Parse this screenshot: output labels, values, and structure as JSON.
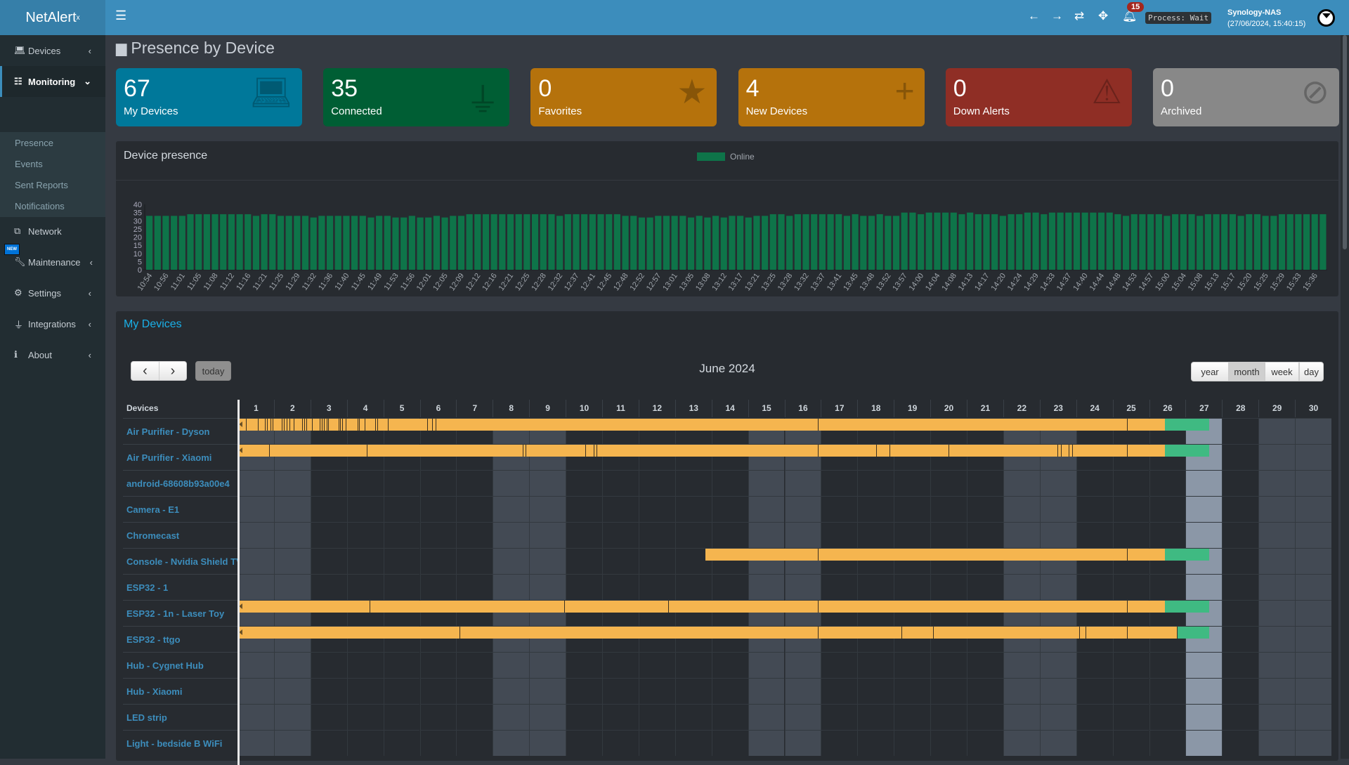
{
  "app": {
    "logo": "NetAlert",
    "logo_sup": "x"
  },
  "header": {
    "notification_count": "15",
    "process": "Process: Wait",
    "host": "Synology-NAS",
    "datetime": "(27/06/2024, 15:40:15)"
  },
  "sidebar": {
    "items": [
      {
        "label": "Devices",
        "icon": "laptop-icon"
      },
      {
        "label": "Monitoring",
        "icon": "chart-icon"
      },
      {
        "label": "Network",
        "icon": "network-icon"
      },
      {
        "label": "Maintenance",
        "icon": "wrench-icon"
      },
      {
        "label": "Settings",
        "icon": "gear-icon"
      },
      {
        "label": "Integrations",
        "icon": "plug-icon"
      },
      {
        "label": "About",
        "icon": "info-icon"
      }
    ],
    "submenu": [
      "Presence",
      "Events",
      "Sent Reports",
      "Notifications"
    ],
    "new_badge": "NEW"
  },
  "page": {
    "title": "Presence by Device"
  },
  "cards": [
    {
      "value": "67",
      "label": "My Devices",
      "color": "#00789a",
      "icon": "laptop-icon"
    },
    {
      "value": "35",
      "label": "Connected",
      "color": "#005e34",
      "icon": "plug-icon"
    },
    {
      "value": "0",
      "label": "Favorites",
      "color": "#b5720c",
      "icon": "star-icon"
    },
    {
      "value": "4",
      "label": "New Devices",
      "color": "#b5720c",
      "icon": "plus-icon"
    },
    {
      "value": "0",
      "label": "Down Alerts",
      "color": "#8f2e25",
      "icon": "warning-icon"
    },
    {
      "value": "0",
      "label": "Archived",
      "color": "#888888",
      "icon": "eye-slash-icon"
    }
  ],
  "presence": {
    "title": "Device presence"
  },
  "chart_data": {
    "type": "bar",
    "legend": "top",
    "legend_entries": [
      "Online"
    ],
    "series_color": "#0e7449",
    "ylim": [
      0,
      40
    ],
    "yticks": [
      0,
      5,
      10,
      15,
      20,
      25,
      30,
      35,
      40
    ],
    "xtick_labels": [
      "10:54",
      "10:56",
      "11:01",
      "11:05",
      "11:08",
      "11:12",
      "11:16",
      "11:21",
      "11:25",
      "11:29",
      "11:32",
      "11:36",
      "11:40",
      "11:45",
      "11:49",
      "11:53",
      "11:56",
      "12:01",
      "12:05",
      "12:09",
      "12:12",
      "12:16",
      "12:21",
      "12:25",
      "12:28",
      "12:32",
      "12:37",
      "12:41",
      "12:45",
      "12:48",
      "12:52",
      "12:57",
      "13:01",
      "13:05",
      "13:08",
      "13:12",
      "13:17",
      "13:21",
      "13:25",
      "13:28",
      "13:32",
      "13:37",
      "13:41",
      "13:45",
      "13:48",
      "13:52",
      "13:57",
      "14:00",
      "14:04",
      "14:08",
      "14:13",
      "14:17",
      "14:20",
      "14:24",
      "14:29",
      "14:33",
      "14:37",
      "14:40",
      "14:44",
      "14:48",
      "14:53",
      "14:57",
      "15:00",
      "15:04",
      "15:08",
      "15:13",
      "15:17",
      "15:20",
      "15:25",
      "15:29",
      "15:33",
      "15:36"
    ],
    "series": [
      {
        "name": "Online",
        "values": [
          33,
          33,
          33,
          33,
          33,
          34,
          34,
          34,
          34,
          34,
          34,
          34,
          34,
          33,
          34,
          34,
          33,
          33,
          33,
          33,
          32,
          33,
          33,
          33,
          33,
          33,
          33,
          32,
          33,
          33,
          32,
          32,
          33,
          32,
          32,
          33,
          32,
          33,
          33,
          34,
          34,
          34,
          34,
          34,
          34,
          34,
          34,
          34,
          34,
          34,
          33,
          34,
          34,
          34,
          34,
          34,
          34,
          34,
          33,
          33,
          32,
          32,
          33,
          33,
          33,
          33,
          32,
          33,
          32,
          33,
          32,
          33,
          33,
          32,
          33,
          33,
          34,
          34,
          33,
          34,
          34,
          34,
          34,
          34,
          34,
          33,
          34,
          33,
          33,
          34,
          33,
          33,
          35,
          35,
          34,
          35,
          35,
          35,
          35,
          34,
          35,
          34,
          34,
          34,
          33,
          34,
          34,
          35,
          35,
          34,
          35,
          35,
          35,
          35,
          35,
          35,
          35,
          35,
          34,
          33,
          34,
          34,
          34,
          34,
          33,
          34,
          34,
          34,
          33,
          34,
          34,
          34,
          34,
          33,
          34,
          34,
          33,
          33,
          34,
          34,
          34,
          34,
          34,
          34
        ]
      }
    ]
  },
  "calendar": {
    "section_title": "My Devices",
    "title": "June 2024",
    "today_label": "today",
    "prev": "‹",
    "next": "›",
    "views": [
      "year",
      "month",
      "week",
      "day"
    ],
    "active_view": "month",
    "today": 27,
    "devices_header": "Devices",
    "days": [
      1,
      2,
      3,
      4,
      5,
      6,
      7,
      8,
      9,
      10,
      11,
      12,
      13,
      14,
      15,
      16,
      17,
      18,
      19,
      20,
      21,
      22,
      23,
      24,
      25,
      26,
      27,
      28,
      29,
      30
    ],
    "weekend_days": [
      1,
      2,
      8,
      9,
      15,
      16,
      22,
      23,
      29,
      30
    ],
    "colors": {
      "past": "#f5b54f",
      "online": "#3fba82",
      "weekend": "#434a54",
      "today": "#8b97a7"
    },
    "devices": [
      {
        "name": "Air Purifier - Dyson",
        "past": [
          1,
          26.44
        ],
        "online": [
          26.44,
          27.65
        ],
        "breaks": [
          1.23,
          1.56,
          1.75,
          1.81,
          1.91,
          1.96,
          2.21,
          2.28,
          2.34,
          2.43,
          2.54,
          2.78,
          2.83,
          2.89,
          3.04,
          3.25,
          3.31,
          3.37,
          3.45,
          3.48,
          3.77,
          3.81,
          3.87,
          3.97,
          4.29,
          4.33,
          4.49,
          4.78,
          4.83,
          5.13,
          6.2,
          6.34,
          6.43,
          16.92,
          25.39
        ]
      },
      {
        "name": "Air Purifier - Xiaomi",
        "past": [
          1,
          26.44
        ],
        "online": [
          26.44,
          27.65
        ],
        "breaks": [
          1.87,
          4.54,
          8.83,
          8.9,
          10.53,
          10.77,
          10.84,
          16.92,
          18.51,
          18.89,
          20.49,
          23.49,
          23.58,
          23.79,
          23.89,
          25.39
        ]
      },
      {
        "name": "android-68608b93a00e4"
      },
      {
        "name": "Camera - E1"
      },
      {
        "name": "Chromecast"
      },
      {
        "name": "Console - Nvidia Shield TV",
        "past": [
          13.83,
          26.44
        ],
        "online": [
          26.44,
          27.65
        ],
        "breaks": [
          16.92,
          25.39
        ]
      },
      {
        "name": "ESP32 - 1"
      },
      {
        "name": "ESP32 - 1n - Laser Toy",
        "past": [
          1,
          26.44
        ],
        "online": [
          26.44,
          27.65
        ],
        "breaks": [
          4.63,
          9.96,
          12.81,
          16.92,
          25.39
        ]
      },
      {
        "name": "ESP32 - ttgo",
        "past": [
          1,
          26.76
        ],
        "online": [
          26.76,
          27.65
        ],
        "breaks": [
          7.09,
          16.92,
          19.21,
          20.08,
          24.09,
          24.26,
          25.39,
          26.76
        ]
      },
      {
        "name": "Hub - Cygnet Hub"
      },
      {
        "name": "Hub - Xiaomi"
      },
      {
        "name": "LED strip"
      },
      {
        "name": "Light - bedside B WiFi"
      }
    ]
  }
}
